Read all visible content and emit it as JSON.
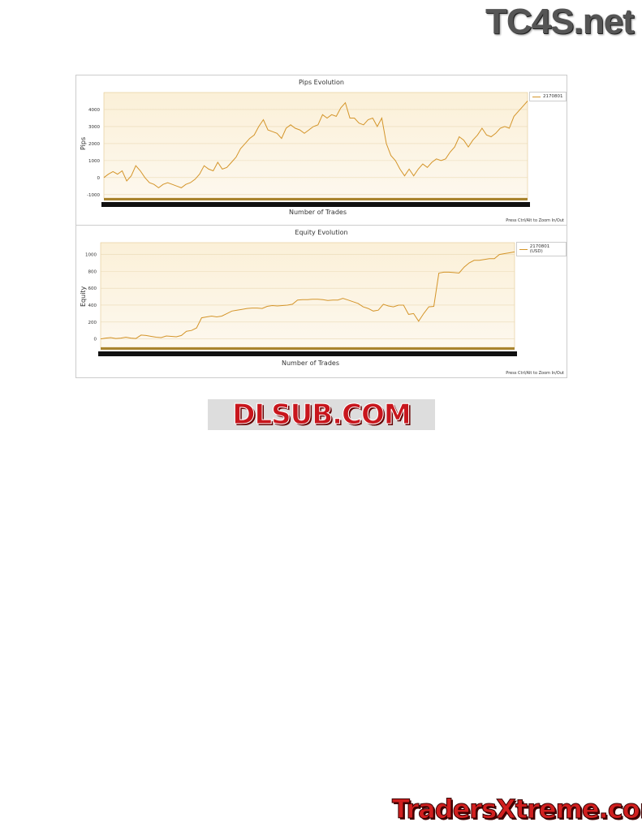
{
  "logos": {
    "top": "TC4S.net",
    "middle": "DLSUB.COM",
    "bottom": "TradersXtreme.com"
  },
  "chart_data": [
    {
      "type": "line",
      "title": "Pips Evolution",
      "xlabel": "Number of Trades",
      "ylabel": "Pips",
      "hint": "Press Ctrl/Alt to Zoom In/Out",
      "legend": "2170801",
      "legend_position": "top-right",
      "color": "#d4952a",
      "grid": true,
      "ylim": [
        -1200,
        5000
      ],
      "yticks": [
        -1000,
        0,
        1000,
        2000,
        3000,
        4000
      ],
      "series": [
        {
          "name": "2170801",
          "values": [
            0,
            200,
            350,
            200,
            400,
            -200,
            100,
            700,
            400,
            0,
            -300,
            -400,
            -600,
            -400,
            -300,
            -400,
            -500,
            -600,
            -400,
            -300,
            -100,
            200,
            700,
            500,
            400,
            900,
            500,
            600,
            900,
            1200,
            1700,
            2000,
            2300,
            2500,
            3000,
            3400,
            2800,
            2700,
            2600,
            2300,
            2900,
            3100,
            2900,
            2800,
            2600,
            2800,
            3000,
            3100,
            3700,
            3500,
            3700,
            3600,
            4100,
            4400,
            3500,
            3500,
            3200,
            3100,
            3400,
            3500,
            3000,
            3500,
            2000,
            1300,
            1000,
            500,
            100,
            500,
            100,
            500,
            800,
            600,
            900,
            1100,
            1000,
            1100,
            1500,
            1800,
            2400,
            2200,
            1800,
            2200,
            2500,
            2900,
            2500,
            2400,
            2600,
            2900,
            3000,
            2900,
            3600,
            3900,
            4200,
            4500
          ]
        }
      ]
    },
    {
      "type": "line",
      "title": "Equity Evolution",
      "xlabel": "Number of Trades",
      "ylabel": "Equity",
      "hint": "Press Ctrl/Alt to Zoom In/Out",
      "legend": "2170801 (USD)",
      "legend_position": "top-right",
      "color": "#d4952a",
      "grid": true,
      "ylim": [
        -100,
        1140
      ],
      "yticks": [
        0,
        200,
        400,
        600,
        800,
        1000
      ],
      "series": [
        {
          "name": "2170801 (USD)",
          "values": [
            0,
            10,
            15,
            5,
            10,
            20,
            10,
            5,
            45,
            40,
            30,
            20,
            15,
            35,
            30,
            25,
            40,
            90,
            100,
            130,
            250,
            260,
            270,
            260,
            270,
            300,
            330,
            340,
            350,
            360,
            365,
            365,
            360,
            385,
            395,
            390,
            395,
            400,
            410,
            460,
            465,
            465,
            470,
            470,
            465,
            455,
            460,
            460,
            480,
            460,
            440,
            420,
            380,
            360,
            330,
            340,
            410,
            390,
            380,
            400,
            400,
            290,
            300,
            210,
            300,
            380,
            385,
            780,
            790,
            790,
            785,
            780,
            850,
            900,
            930,
            930,
            940,
            950,
            950,
            1000,
            1010,
            1020,
            1030
          ]
        }
      ]
    }
  ]
}
